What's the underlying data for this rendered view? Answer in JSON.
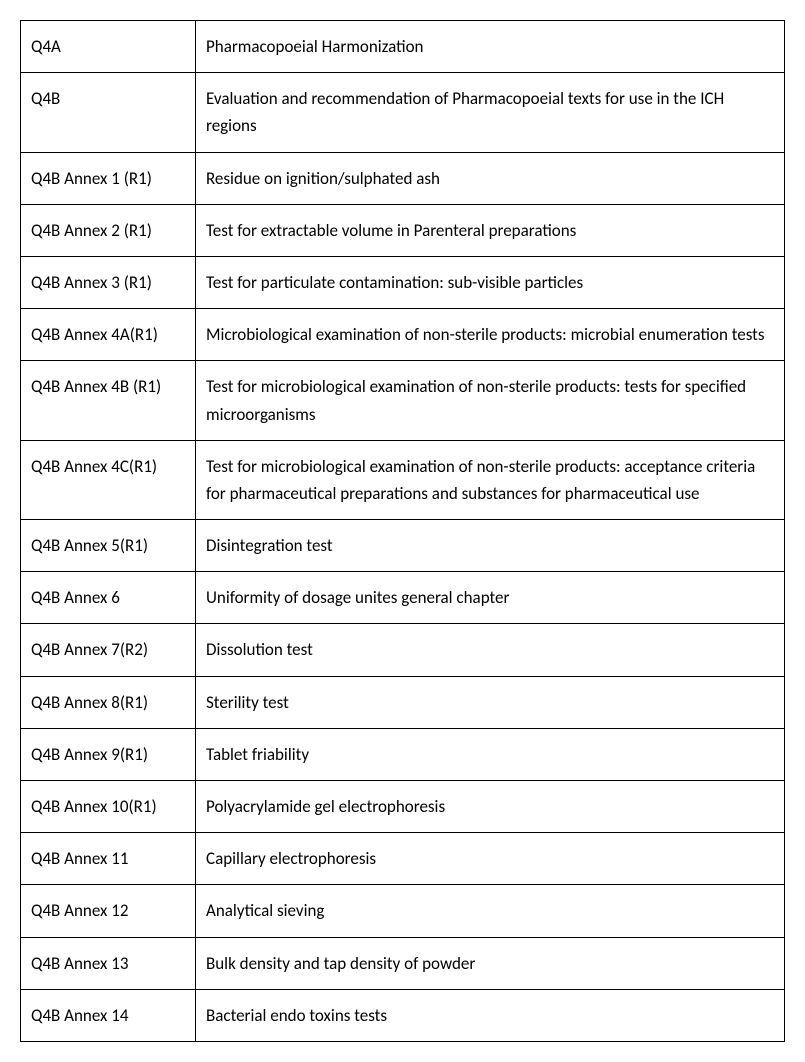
{
  "table": {
    "columns": [
      "code",
      "description"
    ],
    "col_widths": [
      "175px",
      "auto"
    ],
    "border_color": "#000000",
    "font_size": 17,
    "font_family": "Calibri",
    "text_color": "#000000",
    "background_color": "#ffffff",
    "cell_padding": "12px 10px",
    "line_height": 1.6,
    "rows": [
      {
        "code": "Q4A",
        "description": "Pharmacopoeial Harmonization"
      },
      {
        "code": "Q4B",
        "description": "Evaluation and recommendation of Pharmacopoeial texts for use in the ICH regions"
      },
      {
        "code": "Q4B Annex 1 (R1)",
        "description": "Residue on ignition/sulphated ash"
      },
      {
        "code": "Q4B Annex 2 (R1)",
        "description": "Test for extractable volume in Parenteral preparations"
      },
      {
        "code": "Q4B Annex 3 (R1)",
        "description": "Test for particulate contamination: sub-visible particles"
      },
      {
        "code": "Q4B Annex 4A(R1)",
        "description": "Microbiological examination of non-sterile products: microbial enumeration tests"
      },
      {
        "code": "Q4B Annex 4B (R1)",
        "description": "Test for microbiological examination of non-sterile products: tests for specified microorganisms"
      },
      {
        "code": "Q4B Annex 4C(R1)",
        "description": "Test for microbiological examination of non-sterile products: acceptance criteria for pharmaceutical preparations and substances for pharmaceutical use"
      },
      {
        "code": "Q4B Annex 5(R1)",
        "description": "Disintegration test"
      },
      {
        "code": "Q4B Annex 6",
        "description": "Uniformity of dosage unites general chapter"
      },
      {
        "code": "Q4B Annex 7(R2)",
        "description": "Dissolution test"
      },
      {
        "code": "Q4B Annex 8(R1)",
        "description": "Sterility test"
      },
      {
        "code": "Q4B Annex 9(R1)",
        "description": "Tablet friability"
      },
      {
        "code": "Q4B Annex 10(R1)",
        "description": "Polyacrylamide gel electrophoresis"
      },
      {
        "code": "Q4B Annex 11",
        "description": "Capillary electrophoresis"
      },
      {
        "code": "Q4B Annex 12",
        "description": "Analytical sieving"
      },
      {
        "code": "Q4B Annex 13",
        "description": "Bulk density and tap density of powder"
      },
      {
        "code": "Q4B Annex 14",
        "description": "Bacterial endo toxins tests"
      }
    ]
  }
}
